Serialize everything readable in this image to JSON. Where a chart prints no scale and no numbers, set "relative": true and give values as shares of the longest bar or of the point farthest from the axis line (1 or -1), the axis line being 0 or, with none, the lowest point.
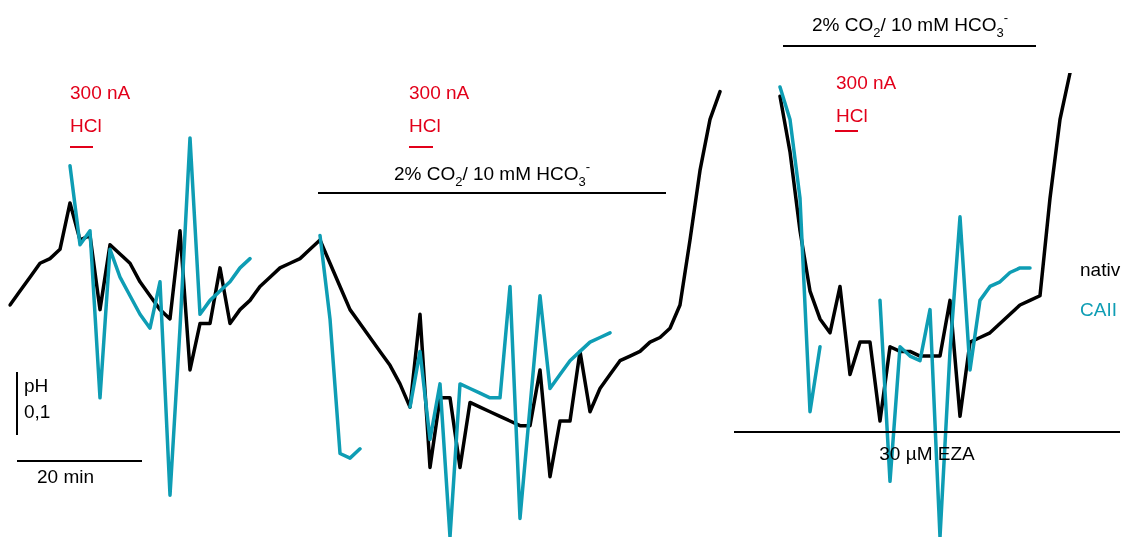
{
  "chart_data": {
    "type": "line",
    "relative": true,
    "marker": "none",
    "categories": [
      null,
      null,
      null,
      null,
      null,
      null,
      null,
      null,
      null,
      null,
      null,
      null,
      null,
      null,
      null,
      null,
      null,
      null,
      null,
      null,
      null,
      null,
      null,
      null,
      null,
      null,
      null,
      null,
      null,
      null,
      null,
      null,
      null,
      null,
      null,
      null,
      null,
      null,
      null,
      null,
      null,
      null,
      null,
      null,
      null,
      null,
      null,
      null,
      null,
      null,
      null,
      null,
      null,
      null,
      null,
      null,
      null,
      null,
      null,
      null,
      null,
      null,
      null,
      null,
      null,
      null,
      null,
      null,
      null,
      null,
      null,
      null,
      null,
      null,
      null,
      null,
      null,
      null,
      null,
      null,
      null,
      null,
      null,
      null,
      null,
      null,
      null,
      null,
      null,
      null,
      null,
      null,
      null,
      null,
      null,
      null,
      null,
      null,
      null,
      null,
      null,
      null,
      null,
      null,
      null,
      null,
      null,
      null,
      null,
      null,
      null,
      null
    ],
    "series": [
      {
        "name": "nativ",
        "color": "#000000",
        "values": [
          0.5,
          0.53,
          0.56,
          0.59,
          0.6,
          0.62,
          0.72,
          0.64,
          0.65,
          0.49,
          0.63,
          0.61,
          0.59,
          0.55,
          0.52,
          0.49,
          0.47,
          0.66,
          0.36,
          0.46,
          0.46,
          0.58,
          0.46,
          0.49,
          0.51,
          0.54,
          0.56,
          0.58,
          0.59,
          0.6,
          0.62,
          0.64,
          0.59,
          0.54,
          0.49,
          0.46,
          0.43,
          0.4,
          0.37,
          0.33,
          0.28,
          0.48,
          0.15,
          0.3,
          0.3,
          0.15,
          0.29,
          0.28,
          0.27,
          0.26,
          0.25,
          0.24,
          0.24,
          0.36,
          0.13,
          0.25,
          0.25,
          0.4,
          0.27,
          0.32,
          0.35,
          0.38,
          0.39,
          0.4,
          0.42,
          0.43,
          0.45,
          0.5,
          0.64,
          0.79,
          0.9,
          0.96,
          null,
          null,
          null,
          null,
          null,
          null,
          null,
          null,
          null,
          null,
          null,
          null,
          null,
          null,
          null,
          null,
          null,
          null,
          null,
          null,
          null,
          null,
          null,
          null,
          null,
          null,
          null,
          null,
          null,
          null,
          null,
          null,
          null,
          null,
          null,
          null,
          null,
          null,
          null,
          null
        ]
      },
      {
        "color": "#000000",
        "values": [
          null,
          null,
          null,
          null,
          null,
          null,
          null,
          null,
          null,
          null,
          null,
          null,
          null,
          null,
          null,
          null,
          null,
          null,
          null,
          null,
          null,
          null,
          null,
          null,
          null,
          null,
          null,
          null,
          null,
          null,
          null,
          null,
          null,
          null,
          null,
          null,
          null,
          null,
          null,
          null,
          null,
          null,
          null,
          null,
          null,
          null,
          null,
          null,
          null,
          null,
          null,
          null,
          null,
          null,
          null,
          null,
          null,
          null,
          null,
          null,
          null,
          null,
          null,
          null,
          null,
          null,
          null,
          null,
          null,
          null,
          null,
          null,
          null,
          null,
          null,
          null,
          null,
          0.95,
          0.83,
          0.66,
          0.53,
          0.47,
          0.44,
          0.54,
          0.35,
          0.42,
          0.42,
          0.25,
          0.41,
          0.4,
          0.4,
          0.39,
          0.39,
          0.39,
          0.51,
          0.26,
          0.42,
          0.43,
          0.44,
          0.46,
          0.48,
          0.5,
          0.51,
          0.52,
          0.73,
          0.9,
          1.0,
          null,
          null,
          null,
          null,
          null
        ]
      },
      {
        "name": "CAII",
        "color": "#0e9db4",
        "values": [
          null,
          null,
          null,
          null,
          null,
          null,
          0.8,
          0.63,
          0.66,
          0.3,
          0.62,
          0.56,
          0.52,
          0.48,
          0.45,
          0.55,
          0.09,
          0.45,
          0.86,
          0.48,
          0.51,
          0.53,
          0.55,
          0.58,
          0.6,
          null,
          null,
          null,
          null,
          null,
          null,
          null,
          null,
          null,
          null,
          null,
          null,
          null,
          null,
          null,
          null,
          null,
          null,
          null,
          null,
          null,
          null,
          null,
          null,
          null,
          null,
          null,
          null,
          null,
          null,
          null,
          null,
          null,
          null,
          null,
          null,
          null,
          null,
          null,
          null,
          null,
          null,
          null,
          null,
          null,
          null,
          null,
          null,
          null,
          null,
          null,
          null,
          null,
          null,
          null,
          null,
          null,
          null,
          null,
          null,
          null,
          null,
          null,
          null,
          null,
          null,
          null,
          null,
          null,
          null,
          null,
          null,
          null,
          null,
          null,
          null,
          null,
          null,
          null,
          null,
          null,
          null,
          null,
          null,
          null,
          null,
          null
        ]
      },
      {
        "color": "#0e9db4",
        "values": [
          null,
          null,
          null,
          null,
          null,
          null,
          null,
          null,
          null,
          null,
          null,
          null,
          null,
          null,
          null,
          null,
          null,
          null,
          null,
          null,
          null,
          null,
          null,
          null,
          null,
          null,
          null,
          null,
          null,
          null,
          null,
          0.65,
          0.47,
          0.18,
          0.17,
          0.19,
          null,
          null,
          null,
          null,
          null,
          null,
          null,
          null,
          null,
          null,
          null,
          null,
          null,
          null,
          null,
          null,
          null,
          null,
          null,
          null,
          null,
          null,
          null,
          null,
          null,
          null,
          null,
          null,
          null,
          null,
          null,
          null,
          null,
          null,
          null,
          null,
          null,
          null,
          null,
          null,
          null,
          null,
          null,
          null,
          null,
          null,
          null,
          null,
          null,
          null,
          null,
          null,
          null,
          null,
          null,
          null,
          null,
          null,
          null,
          null,
          null,
          null,
          null,
          null,
          null,
          null,
          null,
          null,
          null,
          null,
          null,
          null,
          null,
          null,
          null,
          null
        ]
      },
      {
        "color": "#0e9db4",
        "values": [
          null,
          null,
          null,
          null,
          null,
          null,
          null,
          null,
          null,
          null,
          null,
          null,
          null,
          null,
          null,
          null,
          null,
          null,
          null,
          null,
          null,
          null,
          null,
          null,
          null,
          null,
          null,
          null,
          null,
          null,
          null,
          null,
          null,
          null,
          null,
          null,
          null,
          null,
          null,
          null,
          0.28,
          0.4,
          0.21,
          0.33,
          0,
          0.33,
          0.32,
          0.31,
          0.3,
          0.3,
          0.54,
          0.04,
          0.28,
          0.52,
          0.32,
          0.35,
          0.38,
          0.4,
          0.42,
          0.43,
          0.44,
          null,
          null,
          null,
          null,
          null,
          null,
          null,
          null,
          null,
          null,
          null,
          null,
          null,
          null,
          null,
          null,
          null,
          null,
          null,
          null,
          null,
          null,
          null,
          null,
          null,
          null,
          null,
          null,
          null,
          null,
          null,
          null,
          null,
          null,
          null,
          null,
          null,
          null,
          null,
          null,
          null,
          null,
          null,
          null,
          null,
          null,
          null,
          null,
          null,
          null,
          null
        ]
      },
      {
        "color": "#0e9db4",
        "values": [
          null,
          null,
          null,
          null,
          null,
          null,
          null,
          null,
          null,
          null,
          null,
          null,
          null,
          null,
          null,
          null,
          null,
          null,
          null,
          null,
          null,
          null,
          null,
          null,
          null,
          null,
          null,
          null,
          null,
          null,
          null,
          null,
          null,
          null,
          null,
          null,
          null,
          null,
          null,
          null,
          null,
          null,
          null,
          null,
          null,
          null,
          null,
          null,
          null,
          null,
          null,
          null,
          null,
          null,
          null,
          null,
          null,
          null,
          null,
          null,
          null,
          null,
          null,
          null,
          null,
          null,
          null,
          null,
          null,
          null,
          null,
          null,
          null,
          null,
          null,
          null,
          null,
          0.97,
          0.9,
          0.73,
          0.27,
          0.41,
          null,
          null,
          null,
          null,
          null,
          null,
          null,
          null,
          null,
          null,
          null,
          null,
          null,
          null,
          null,
          null,
          null,
          null,
          null,
          null,
          null,
          null,
          null,
          null,
          null,
          null,
          null,
          null,
          null,
          null
        ]
      },
      {
        "color": "#0e9db4",
        "values": [
          null,
          null,
          null,
          null,
          null,
          null,
          null,
          null,
          null,
          null,
          null,
          null,
          null,
          null,
          null,
          null,
          null,
          null,
          null,
          null,
          null,
          null,
          null,
          null,
          null,
          null,
          null,
          null,
          null,
          null,
          null,
          null,
          null,
          null,
          null,
          null,
          null,
          null,
          null,
          null,
          null,
          null,
          null,
          null,
          null,
          null,
          null,
          null,
          null,
          null,
          null,
          null,
          null,
          null,
          null,
          null,
          null,
          null,
          null,
          null,
          null,
          null,
          null,
          null,
          null,
          null,
          null,
          null,
          null,
          null,
          null,
          null,
          null,
          null,
          null,
          null,
          null,
          null,
          null,
          null,
          null,
          null,
          null,
          null,
          null,
          null,
          null,
          0.51,
          0.12,
          0.41,
          0.39,
          0.38,
          0.49,
          0,
          0.4,
          0.69,
          0.36,
          0.51,
          0.54,
          0.55,
          0.57,
          0.58,
          0.58,
          null,
          null,
          null,
          null,
          null,
          null,
          null,
          null,
          null
        ]
      }
    ],
    "annotations": [
      "300 nA\nHCl",
      "300 nA\nHCl",
      "300 nA\nHCl",
      "2% CO$_{2}$/ 10 mM HCO$_{3}$$^{-}$",
      "2% CO$_{2}$/ 10 mM HCO$_{3}$$^{-}$",
      "30 µM EZA",
      "pH",
      "0,1",
      "20 min"
    ]
  }
}
